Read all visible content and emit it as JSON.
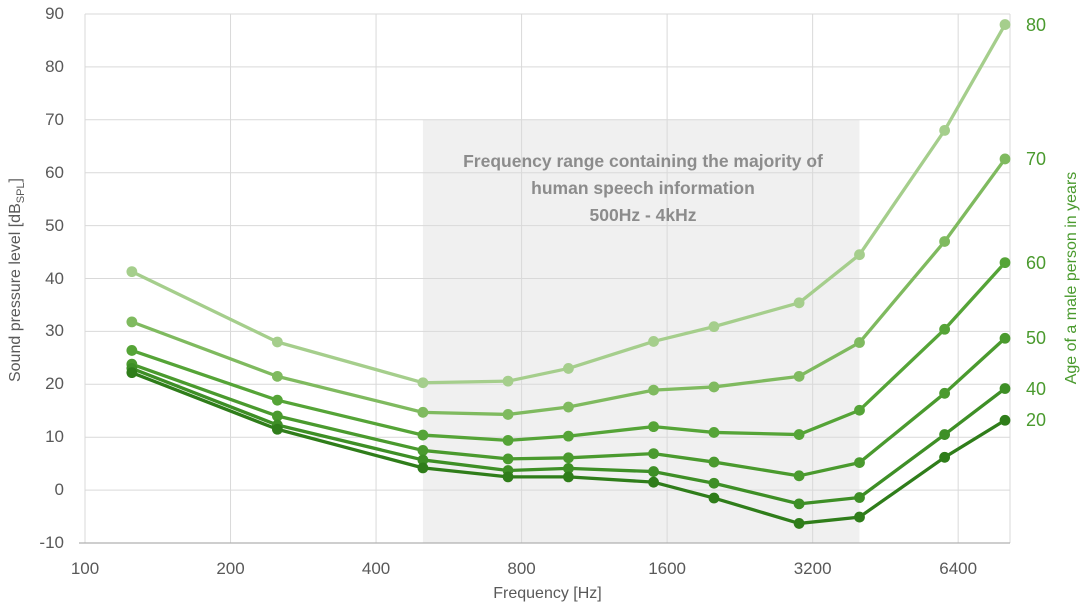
{
  "chart_data": {
    "type": "line",
    "title": "",
    "xlabel": "Frequency [Hz]",
    "ylabel_parts": {
      "main": "Sound pressure level [dB",
      "sub": "SPL",
      "end": "]"
    },
    "right_axis_label": "Age of a male person in years",
    "x_scale": "log",
    "xlim": [
      100,
      8192
    ],
    "ylim": [
      -10,
      90
    ],
    "grid": true,
    "x_ticks": [
      100,
      200,
      400,
      800,
      1600,
      3200,
      6400
    ],
    "y_ticks": [
      90,
      80,
      70,
      60,
      50,
      40,
      30,
      20,
      10,
      0,
      -10
    ],
    "x": [
      125,
      250,
      500,
      750,
      1000,
      1500,
      2000,
      3000,
      4000,
      6000,
      8000
    ],
    "series": [
      {
        "name": "80",
        "color": "#a5ce8c",
        "values": [
          41.3,
          28.0,
          20.3,
          20.6,
          23.0,
          28.1,
          30.9,
          35.4,
          44.5,
          68.0,
          88.0
        ]
      },
      {
        "name": "70",
        "color": "#7fba5f",
        "values": [
          31.8,
          21.5,
          14.7,
          14.3,
          15.7,
          18.9,
          19.5,
          21.5,
          27.9,
          47.0,
          62.6
        ]
      },
      {
        "name": "60",
        "color": "#55a437",
        "values": [
          26.4,
          17.0,
          10.4,
          9.4,
          10.2,
          12.0,
          10.9,
          10.5,
          15.1,
          30.4,
          43.0
        ]
      },
      {
        "name": "50",
        "color": "#4a9a2e",
        "values": [
          23.8,
          14.0,
          7.5,
          5.9,
          6.1,
          6.9,
          5.3,
          2.7,
          5.2,
          18.3,
          28.7
        ]
      },
      {
        "name": "40",
        "color": "#3e8f26",
        "values": [
          23.0,
          12.3,
          5.7,
          3.7,
          4.1,
          3.5,
          1.3,
          -2.6,
          -1.4,
          10.5,
          19.2
        ]
      },
      {
        "name": "20",
        "color": "#2f7d1a",
        "values": [
          22.2,
          11.5,
          4.2,
          2.5,
          2.5,
          1.5,
          -1.5,
          -6.3,
          -5.1,
          6.2,
          13.2
        ]
      }
    ],
    "annotation": {
      "lines": [
        "Frequency range containing the majority of",
        "human speech information",
        "500Hz - 4kHz"
      ],
      "region_x": [
        500,
        4000
      ],
      "region_top": 70,
      "fill": "#f0f0f0",
      "text_color": "#8c8c8c"
    },
    "legend_position": "right-of-line-ends",
    "colors": {
      "grid": "#d9d9d9",
      "axis": "#b0b0b0",
      "tick_text": "#595959",
      "age_text": "#4a9a2e"
    }
  }
}
